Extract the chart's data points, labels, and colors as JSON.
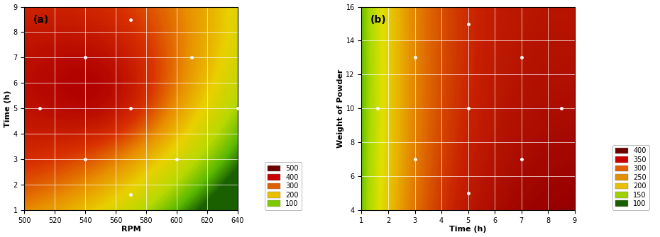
{
  "plot_a": {
    "xlabel": "RPM",
    "ylabel": "Time (h)",
    "xlim": [
      500,
      640
    ],
    "ylim": [
      1,
      9
    ],
    "xticks": [
      500,
      520,
      540,
      560,
      580,
      600,
      620,
      640
    ],
    "yticks": [
      1,
      2,
      3,
      4,
      5,
      6,
      7,
      8,
      9
    ],
    "label": "(a)",
    "data_points": [
      [
        510,
        5
      ],
      [
        540,
        7
      ],
      [
        570,
        8.5
      ],
      [
        570,
        5
      ],
      [
        570,
        1.6
      ],
      [
        540,
        3
      ],
      [
        600,
        3
      ],
      [
        610,
        7
      ],
      [
        640,
        5
      ]
    ],
    "legend_labels": [
      "500",
      "400",
      "300",
      "200",
      "100"
    ],
    "legend_colors": [
      "#6b0000",
      "#c80000",
      "#e06000",
      "#e8c000",
      "#7ec800"
    ]
  },
  "plot_b": {
    "xlabel": "Time (h)",
    "ylabel": "Weight of Powder",
    "xlim": [
      1,
      9
    ],
    "ylim": [
      4,
      16
    ],
    "xticks": [
      1,
      2,
      3,
      4,
      5,
      6,
      7,
      8,
      9
    ],
    "yticks": [
      4,
      6,
      8,
      10,
      12,
      14,
      16
    ],
    "label": "(b)",
    "data_points": [
      [
        1.6,
        10
      ],
      [
        3,
        13
      ],
      [
        3,
        7
      ],
      [
        5,
        15
      ],
      [
        5,
        10
      ],
      [
        5,
        5
      ],
      [
        7,
        13
      ],
      [
        7,
        7
      ],
      [
        8.5,
        10
      ]
    ],
    "legend_labels": [
      "400",
      "350",
      "300",
      "250",
      "200",
      "150",
      "100"
    ],
    "legend_colors": [
      "#6b0000",
      "#c80000",
      "#e06000",
      "#e09000",
      "#e8c000",
      "#a0d000",
      "#1a6000"
    ]
  }
}
